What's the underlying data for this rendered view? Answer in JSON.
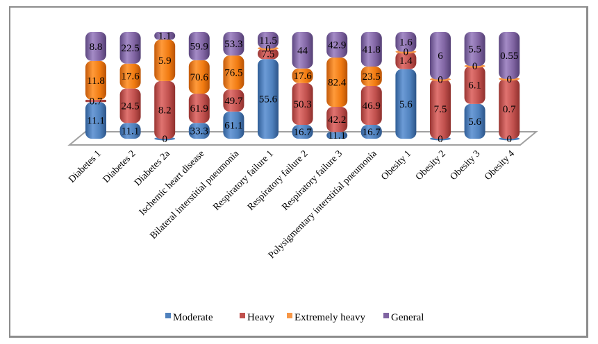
{
  "chart_data": {
    "type": "bar",
    "subtype": "100% stacked 3D cylinder",
    "title": "",
    "xlabel": "",
    "ylabel": "",
    "legend_position": "bottom",
    "grid": false,
    "categories": [
      "Diabetes 1",
      "Diabetes 2",
      "Diabetes 2a",
      "Ischemic heart disease",
      "Bilateral interstitial pneumonia",
      "Respiratory failure 1",
      "Respiratory failure 2",
      "Respiratory failure 3",
      "Polysigmentary interstitial pneumonia",
      "Obesity 1",
      "Obesity 2",
      "Obesity 3",
      "Obesity 4"
    ],
    "series": [
      {
        "name": "Moderate",
        "color": "#4f81bd",
        "values": [
          11.1,
          11.1,
          0,
          33.3,
          61.1,
          55.6,
          16.7,
          11.1,
          16.7,
          5.6,
          0,
          5.6,
          0
        ]
      },
      {
        "name": "Heavy",
        "color": "#c0504d",
        "values": [
          0.7,
          24.5,
          8.2,
          61.9,
          49.7,
          7.5,
          50.3,
          42.2,
          46.9,
          1.4,
          7.5,
          6.1,
          0.7
        ]
      },
      {
        "name": "Extremely heavy",
        "color": "#f79646",
        "values": [
          11.8,
          17.6,
          5.9,
          70.6,
          76.5,
          0,
          17.6,
          82.4,
          23.5,
          0,
          0,
          0,
          0
        ]
      },
      {
        "name": "General",
        "color": "#8064a2",
        "values": [
          8.8,
          22.5,
          1.1,
          59.9,
          53.3,
          11.5,
          44,
          42.9,
          41.8,
          1.6,
          6,
          5.5,
          0.55
        ]
      }
    ]
  }
}
